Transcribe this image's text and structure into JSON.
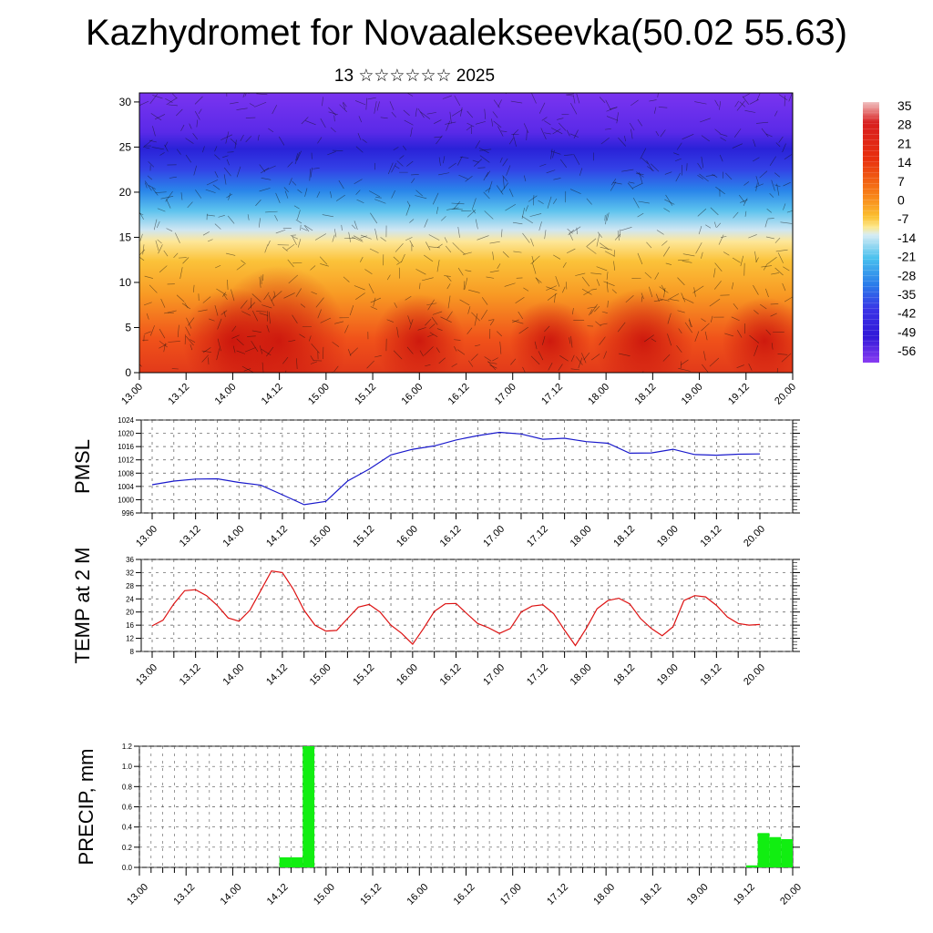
{
  "title": "Kazhydromet for Novaalekseevka(50.02 55.63)",
  "subtitle": "13 ☆☆☆☆☆☆ 2025",
  "time_labels": [
    "13.00",
    "13.12",
    "14.00",
    "14.12",
    "15.00",
    "15.12",
    "16.00",
    "16.12",
    "17.00",
    "17.12",
    "18.00",
    "18.12",
    "19.00",
    "19.12",
    "20.00"
  ],
  "chart_data": [
    {
      "type": "heatmap",
      "description_title": "",
      "y_ticks": [
        0,
        5,
        10,
        15,
        20,
        25,
        30
      ],
      "ylim": [
        0,
        31
      ],
      "colorbar": {
        "labels": [
          "35",
          "28",
          "21",
          "14",
          "7",
          "0",
          "-7",
          "-14",
          "-21",
          "-28",
          "-35",
          "-42",
          "-49",
          "-56"
        ],
        "colors": [
          "#e8a0a0",
          "#d81e1e",
          "#e82010",
          "#f04a10",
          "#f87a18",
          "#fbb52c",
          "#fde08c",
          "#cfe6f2",
          "#5cc6ee",
          "#2a9cec",
          "#2c5ee6",
          "#3a2ee8",
          "#4a20e6",
          "#7a2ef0"
        ]
      },
      "temperature_profile": [
        {
          "height": 0,
          "temp": 28
        },
        {
          "height": 5,
          "temp": 18
        },
        {
          "height": 10,
          "temp": 10
        },
        {
          "height": 15,
          "temp": -5
        },
        {
          "height": 18,
          "temp": -22
        },
        {
          "height": 21,
          "temp": -35
        },
        {
          "height": 24,
          "temp": -52
        },
        {
          "height": 27,
          "temp": -48
        },
        {
          "height": 31,
          "temp": -56
        }
      ]
    },
    {
      "type": "line",
      "ylabel": "PMSL",
      "ylim": [
        996,
        1024
      ],
      "y_ticks": [
        996,
        1000,
        1004,
        1008,
        1012,
        1016,
        1020,
        1024
      ],
      "color": "#1a1acc",
      "x": [
        0,
        0.25,
        0.5,
        0.75,
        1,
        1.25,
        1.5,
        1.75,
        2,
        2.25,
        2.5,
        2.75,
        3,
        3.25,
        3.5,
        3.75,
        4,
        4.25,
        4.5,
        4.75,
        5,
        5.25,
        5.5,
        5.75,
        6,
        6.25,
        6.5,
        6.75,
        7
      ],
      "values": [
        1004.5,
        1005.6,
        1006.2,
        1006.3,
        1005.2,
        1004.4,
        1001.5,
        998.5,
        999.5,
        1005.6,
        1009.2,
        1013.5,
        1015.2,
        1016.2,
        1018.0,
        1019.3,
        1020.3,
        1019.8,
        1018.2,
        1018.5,
        1017.5,
        1017.0,
        1014.0,
        1014.1,
        1015.2,
        1013.6,
        1013.4,
        1013.7,
        1013.8
      ]
    },
    {
      "type": "line",
      "ylabel": "TEMP at 2 M",
      "ylim": [
        8,
        36
      ],
      "y_ticks": [
        8,
        12,
        16,
        20,
        24,
        28,
        32,
        36
      ],
      "color": "#dd1111",
      "x": [
        0,
        0.125,
        0.25,
        0.375,
        0.5,
        0.625,
        0.75,
        0.875,
        1,
        1.125,
        1.25,
        1.375,
        1.5,
        1.625,
        1.75,
        1.875,
        2,
        2.125,
        2.25,
        2.375,
        2.5,
        2.625,
        2.75,
        2.875,
        3,
        3.125,
        3.25,
        3.375,
        3.5,
        3.625,
        3.75,
        3.875,
        4,
        4.125,
        4.25,
        4.375,
        4.5,
        4.625,
        4.75,
        4.875,
        5,
        5.125,
        5.25,
        5.375,
        5.5,
        5.625,
        5.75,
        5.875,
        6,
        6.125,
        6.25,
        6.375,
        6.5,
        6.625,
        6.75,
        6.875,
        7
      ],
      "values": [
        15.8,
        17.5,
        22.5,
        26.5,
        26.8,
        25.0,
        22.0,
        18.2,
        17.2,
        20.5,
        26.5,
        32.5,
        32.0,
        27.0,
        20.5,
        16.0,
        14.2,
        14.4,
        18.0,
        21.5,
        22.3,
        20.0,
        16.0,
        13.5,
        10.2,
        15.0,
        20.2,
        22.5,
        22.6,
        19.5,
        16.5,
        15.2,
        13.5,
        15.0,
        20.0,
        21.8,
        22.2,
        19.5,
        14.5,
        9.8,
        15.0,
        21.0,
        23.5,
        24.2,
        22.5,
        18.0,
        15.0,
        12.8,
        15.5,
        23.5,
        25.0,
        24.6,
        22.0,
        18.5,
        16.5,
        16.0,
        16.2
      ]
    },
    {
      "type": "bar",
      "ylabel": "PRECIP, mm",
      "ylim": [
        0,
        1.2
      ],
      "y_ticks": [
        0.0,
        0.2,
        0.4,
        0.6,
        0.8,
        1.0,
        1.2
      ],
      "y_tick_labels": [
        "0.0",
        "0.2",
        "0.4",
        "0.6",
        "0.8",
        "1.0",
        "1.2"
      ],
      "color": "#11ee11",
      "bar_width_days": 0.125,
      "x": [
        1.5,
        1.625,
        1.75,
        6.5,
        6.625,
        6.75,
        6.875
      ],
      "values": [
        0.1,
        0.1,
        1.2,
        0.02,
        0.34,
        0.3,
        0.28
      ]
    }
  ]
}
